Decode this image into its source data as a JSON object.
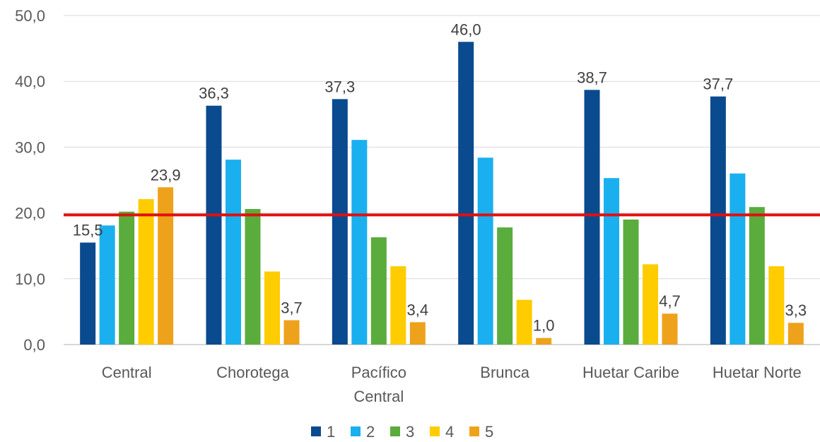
{
  "chart_data": {
    "type": "bar",
    "categories": [
      [
        "Central"
      ],
      [
        "Chorotega"
      ],
      [
        "Pacífico",
        "Central"
      ],
      [
        "Brunca"
      ],
      [
        "Huetar Caribe"
      ],
      [
        "Huetar Norte"
      ]
    ],
    "series": [
      {
        "name": "1",
        "color": "#0a4a8f",
        "values": [
          15.5,
          36.3,
          37.3,
          46.0,
          38.7,
          37.7
        ]
      },
      {
        "name": "2",
        "color": "#1ab0f0",
        "values": [
          18.1,
          28.1,
          31.1,
          28.4,
          25.3,
          26.0
        ]
      },
      {
        "name": "3",
        "color": "#5aac3c",
        "values": [
          20.2,
          20.6,
          16.3,
          17.8,
          19.0,
          20.9
        ]
      },
      {
        "name": "4",
        "color": "#ffcc00",
        "values": [
          22.1,
          11.1,
          11.9,
          6.8,
          12.2,
          11.9
        ]
      },
      {
        "name": "5",
        "color": "#eea21b",
        "values": [
          23.9,
          3.7,
          3.4,
          1.0,
          4.7,
          3.3
        ]
      }
    ],
    "data_labels": [
      {
        "series": 0,
        "category": 0,
        "text": "15,5"
      },
      {
        "series": 4,
        "category": 0,
        "text": "23,9"
      },
      {
        "series": 0,
        "category": 1,
        "text": "36,3"
      },
      {
        "series": 4,
        "category": 1,
        "text": "3,7"
      },
      {
        "series": 0,
        "category": 2,
        "text": "37,3"
      },
      {
        "series": 4,
        "category": 2,
        "text": "3,4"
      },
      {
        "series": 0,
        "category": 3,
        "text": "46,0"
      },
      {
        "series": 4,
        "category": 3,
        "text": "1,0"
      },
      {
        "series": 0,
        "category": 4,
        "text": "38,7"
      },
      {
        "series": 4,
        "category": 4,
        "text": "4,7"
      },
      {
        "series": 0,
        "category": 5,
        "text": "37,7"
      },
      {
        "series": 4,
        "category": 5,
        "text": "3,3"
      }
    ],
    "y_ticks": [
      "0,0",
      "10,0",
      "20,0",
      "30,0",
      "40,0",
      "50,0"
    ],
    "ylim": [
      0,
      50
    ],
    "reference_line": {
      "value": 19.7,
      "color": "#e01010"
    },
    "grid": true,
    "legend": "bottom-center"
  }
}
